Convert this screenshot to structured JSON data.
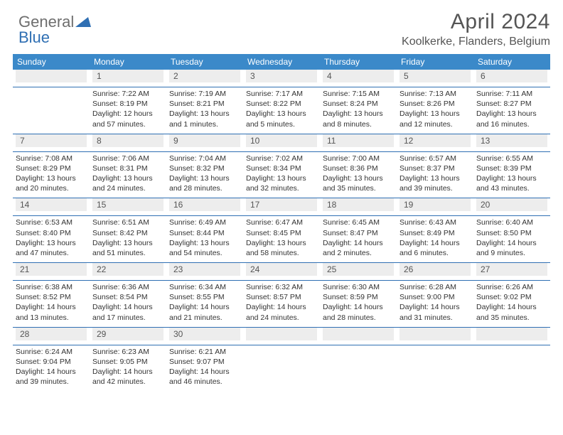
{
  "brand": {
    "word1": "General",
    "word2": "Blue",
    "logo_color": "#2f6fb3",
    "text_color": "#6e6e6e"
  },
  "title": "April 2024",
  "location": "Koolkerke, Flanders, Belgium",
  "colors": {
    "header_bg": "#3b89c9",
    "header_fg": "#ffffff",
    "daynum_bg": "#ededed",
    "rule": "#2f6fb3",
    "body_text": "#333333"
  },
  "daysOfWeek": [
    "Sunday",
    "Monday",
    "Tuesday",
    "Wednesday",
    "Thursday",
    "Friday",
    "Saturday"
  ],
  "weeks": [
    [
      null,
      {
        "n": "1",
        "sr": "Sunrise: 7:22 AM",
        "ss": "Sunset: 8:19 PM",
        "d1": "Daylight: 12 hours",
        "d2": "and 57 minutes."
      },
      {
        "n": "2",
        "sr": "Sunrise: 7:19 AM",
        "ss": "Sunset: 8:21 PM",
        "d1": "Daylight: 13 hours",
        "d2": "and 1 minutes."
      },
      {
        "n": "3",
        "sr": "Sunrise: 7:17 AM",
        "ss": "Sunset: 8:22 PM",
        "d1": "Daylight: 13 hours",
        "d2": "and 5 minutes."
      },
      {
        "n": "4",
        "sr": "Sunrise: 7:15 AM",
        "ss": "Sunset: 8:24 PM",
        "d1": "Daylight: 13 hours",
        "d2": "and 8 minutes."
      },
      {
        "n": "5",
        "sr": "Sunrise: 7:13 AM",
        "ss": "Sunset: 8:26 PM",
        "d1": "Daylight: 13 hours",
        "d2": "and 12 minutes."
      },
      {
        "n": "6",
        "sr": "Sunrise: 7:11 AM",
        "ss": "Sunset: 8:27 PM",
        "d1": "Daylight: 13 hours",
        "d2": "and 16 minutes."
      }
    ],
    [
      {
        "n": "7",
        "sr": "Sunrise: 7:08 AM",
        "ss": "Sunset: 8:29 PM",
        "d1": "Daylight: 13 hours",
        "d2": "and 20 minutes."
      },
      {
        "n": "8",
        "sr": "Sunrise: 7:06 AM",
        "ss": "Sunset: 8:31 PM",
        "d1": "Daylight: 13 hours",
        "d2": "and 24 minutes."
      },
      {
        "n": "9",
        "sr": "Sunrise: 7:04 AM",
        "ss": "Sunset: 8:32 PM",
        "d1": "Daylight: 13 hours",
        "d2": "and 28 minutes."
      },
      {
        "n": "10",
        "sr": "Sunrise: 7:02 AM",
        "ss": "Sunset: 8:34 PM",
        "d1": "Daylight: 13 hours",
        "d2": "and 32 minutes."
      },
      {
        "n": "11",
        "sr": "Sunrise: 7:00 AM",
        "ss": "Sunset: 8:36 PM",
        "d1": "Daylight: 13 hours",
        "d2": "and 35 minutes."
      },
      {
        "n": "12",
        "sr": "Sunrise: 6:57 AM",
        "ss": "Sunset: 8:37 PM",
        "d1": "Daylight: 13 hours",
        "d2": "and 39 minutes."
      },
      {
        "n": "13",
        "sr": "Sunrise: 6:55 AM",
        "ss": "Sunset: 8:39 PM",
        "d1": "Daylight: 13 hours",
        "d2": "and 43 minutes."
      }
    ],
    [
      {
        "n": "14",
        "sr": "Sunrise: 6:53 AM",
        "ss": "Sunset: 8:40 PM",
        "d1": "Daylight: 13 hours",
        "d2": "and 47 minutes."
      },
      {
        "n": "15",
        "sr": "Sunrise: 6:51 AM",
        "ss": "Sunset: 8:42 PM",
        "d1": "Daylight: 13 hours",
        "d2": "and 51 minutes."
      },
      {
        "n": "16",
        "sr": "Sunrise: 6:49 AM",
        "ss": "Sunset: 8:44 PM",
        "d1": "Daylight: 13 hours",
        "d2": "and 54 minutes."
      },
      {
        "n": "17",
        "sr": "Sunrise: 6:47 AM",
        "ss": "Sunset: 8:45 PM",
        "d1": "Daylight: 13 hours",
        "d2": "and 58 minutes."
      },
      {
        "n": "18",
        "sr": "Sunrise: 6:45 AM",
        "ss": "Sunset: 8:47 PM",
        "d1": "Daylight: 14 hours",
        "d2": "and 2 minutes."
      },
      {
        "n": "19",
        "sr": "Sunrise: 6:43 AM",
        "ss": "Sunset: 8:49 PM",
        "d1": "Daylight: 14 hours",
        "d2": "and 6 minutes."
      },
      {
        "n": "20",
        "sr": "Sunrise: 6:40 AM",
        "ss": "Sunset: 8:50 PM",
        "d1": "Daylight: 14 hours",
        "d2": "and 9 minutes."
      }
    ],
    [
      {
        "n": "21",
        "sr": "Sunrise: 6:38 AM",
        "ss": "Sunset: 8:52 PM",
        "d1": "Daylight: 14 hours",
        "d2": "and 13 minutes."
      },
      {
        "n": "22",
        "sr": "Sunrise: 6:36 AM",
        "ss": "Sunset: 8:54 PM",
        "d1": "Daylight: 14 hours",
        "d2": "and 17 minutes."
      },
      {
        "n": "23",
        "sr": "Sunrise: 6:34 AM",
        "ss": "Sunset: 8:55 PM",
        "d1": "Daylight: 14 hours",
        "d2": "and 21 minutes."
      },
      {
        "n": "24",
        "sr": "Sunrise: 6:32 AM",
        "ss": "Sunset: 8:57 PM",
        "d1": "Daylight: 14 hours",
        "d2": "and 24 minutes."
      },
      {
        "n": "25",
        "sr": "Sunrise: 6:30 AM",
        "ss": "Sunset: 8:59 PM",
        "d1": "Daylight: 14 hours",
        "d2": "and 28 minutes."
      },
      {
        "n": "26",
        "sr": "Sunrise: 6:28 AM",
        "ss": "Sunset: 9:00 PM",
        "d1": "Daylight: 14 hours",
        "d2": "and 31 minutes."
      },
      {
        "n": "27",
        "sr": "Sunrise: 6:26 AM",
        "ss": "Sunset: 9:02 PM",
        "d1": "Daylight: 14 hours",
        "d2": "and 35 minutes."
      }
    ],
    [
      {
        "n": "28",
        "sr": "Sunrise: 6:24 AM",
        "ss": "Sunset: 9:04 PM",
        "d1": "Daylight: 14 hours",
        "d2": "and 39 minutes."
      },
      {
        "n": "29",
        "sr": "Sunrise: 6:23 AM",
        "ss": "Sunset: 9:05 PM",
        "d1": "Daylight: 14 hours",
        "d2": "and 42 minutes."
      },
      {
        "n": "30",
        "sr": "Sunrise: 6:21 AM",
        "ss": "Sunset: 9:07 PM",
        "d1": "Daylight: 14 hours",
        "d2": "and 46 minutes."
      },
      null,
      null,
      null,
      null
    ]
  ]
}
